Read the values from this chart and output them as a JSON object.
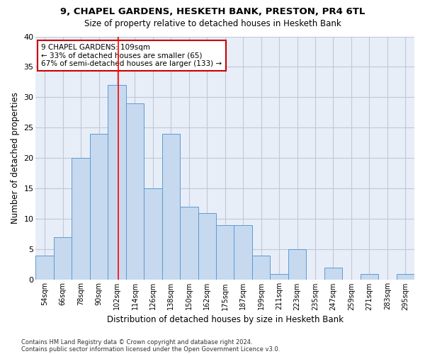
{
  "title1": "9, CHAPEL GARDENS, HESKETH BANK, PRESTON, PR4 6TL",
  "title2": "Size of property relative to detached houses in Hesketh Bank",
  "xlabel": "Distribution of detached houses by size in Hesketh Bank",
  "ylabel": "Number of detached properties",
  "footnote1": "Contains HM Land Registry data © Crown copyright and database right 2024.",
  "footnote2": "Contains public sector information licensed under the Open Government Licence v3.0.",
  "bin_labels": [
    "54sqm",
    "66sqm",
    "78sqm",
    "90sqm",
    "102sqm",
    "114sqm",
    "126sqm",
    "138sqm",
    "150sqm",
    "162sqm",
    "175sqm",
    "187sqm",
    "199sqm",
    "211sqm",
    "223sqm",
    "235sqm",
    "247sqm",
    "259sqm",
    "271sqm",
    "283sqm",
    "295sqm"
  ],
  "bar_values": [
    4,
    7,
    20,
    24,
    32,
    29,
    15,
    24,
    12,
    11,
    9,
    9,
    4,
    1,
    5,
    0,
    2,
    0,
    1,
    0,
    1
  ],
  "bar_color": "#c7d9ee",
  "bar_edge_color": "#5b9bd5",
  "grid_color": "#c0c8d8",
  "bg_color": "#e8eef8",
  "annotation_text": "9 CHAPEL GARDENS: 109sqm\n← 33% of detached houses are smaller (65)\n67% of semi-detached houses are larger (133) →",
  "annotation_box_color": "#cc0000",
  "ylim": [
    0,
    40
  ],
  "yticks": [
    0,
    5,
    10,
    15,
    20,
    25,
    30,
    35,
    40
  ]
}
